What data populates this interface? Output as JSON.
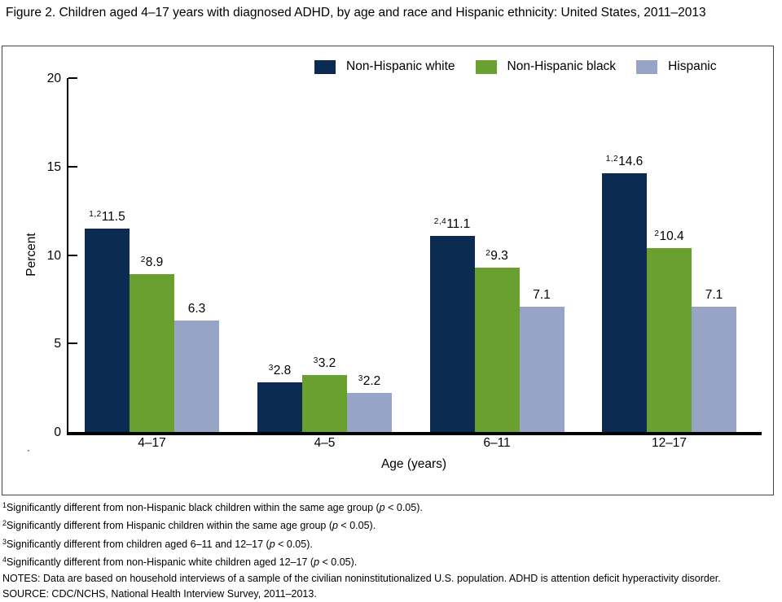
{
  "figure": {
    "title": "Figure 2. Children aged 4–17 years with diagnosed ADHD, by age and race and Hispanic ethnicity: United States, 2011–2013"
  },
  "chart_data": {
    "type": "bar",
    "title": "Figure 2. Children aged 4–17 years with diagnosed ADHD, by age and race and Hispanic ethnicity: United States, 2011–2013",
    "categories": [
      "4–17",
      "4–5",
      "6–11",
      "12–17"
    ],
    "series": [
      {
        "name": "Non-Hispanic white",
        "color": "#0c2b52",
        "points": [
          {
            "value": 11.5,
            "sup": "1,2"
          },
          {
            "value": 2.8,
            "sup": "3"
          },
          {
            "value": 11.1,
            "sup": "2,4"
          },
          {
            "value": 14.6,
            "sup": "1,2"
          }
        ]
      },
      {
        "name": "Non-Hispanic black",
        "color": "#69a02f",
        "points": [
          {
            "value": 8.9,
            "sup": "2"
          },
          {
            "value": 3.2,
            "sup": "3"
          },
          {
            "value": 9.3,
            "sup": "2"
          },
          {
            "value": 10.4,
            "sup": "2"
          }
        ]
      },
      {
        "name": "Hispanic",
        "color": "#98a4c6",
        "points": [
          {
            "value": 6.3,
            "sup": ""
          },
          {
            "value": 2.2,
            "sup": "3"
          },
          {
            "value": 7.1,
            "sup": ""
          },
          {
            "value": 7.1,
            "sup": ""
          }
        ]
      }
    ],
    "xlabel": "Age (years)",
    "ylabel": "Percent",
    "ylim": [
      0,
      20
    ],
    "yticks": [
      0,
      5,
      10,
      15,
      20
    ],
    "grid": false,
    "legend_position": "top-inside"
  },
  "footer": {
    "lines": [
      {
        "sup": "1",
        "parts": [
          {
            "t": "Significantly different from non-Hispanic black children within the same age group ("
          },
          {
            "t": "p",
            "i": true
          },
          {
            "t": " < 0.05)."
          }
        ]
      },
      {
        "sup": "2",
        "parts": [
          {
            "t": "Significantly different from Hispanic children within the same age group ("
          },
          {
            "t": "p",
            "i": true
          },
          {
            "t": " < 0.05)."
          }
        ]
      },
      {
        "sup": "3",
        "parts": [
          {
            "t": "Significantly different from children aged 6–11 and 12–17 ("
          },
          {
            "t": "p",
            "i": true
          },
          {
            "t": " < 0.05)."
          }
        ]
      },
      {
        "sup": "4",
        "parts": [
          {
            "t": "Significantly different from non-Hispanic white children aged 12–17 ("
          },
          {
            "t": "p",
            "i": true
          },
          {
            "t": " < 0.05)."
          }
        ]
      },
      {
        "sup": "",
        "parts": [
          {
            "t": "NOTES: Data are based on household interviews of a sample of the civilian noninstitutionalized U.S. population. ADHD is attention deficit hyperactivity disorder."
          }
        ]
      },
      {
        "sup": "",
        "parts": [
          {
            "t": "SOURCE: CDC/NCHS, National Health Interview Survey, 2011–2013."
          }
        ]
      }
    ]
  }
}
